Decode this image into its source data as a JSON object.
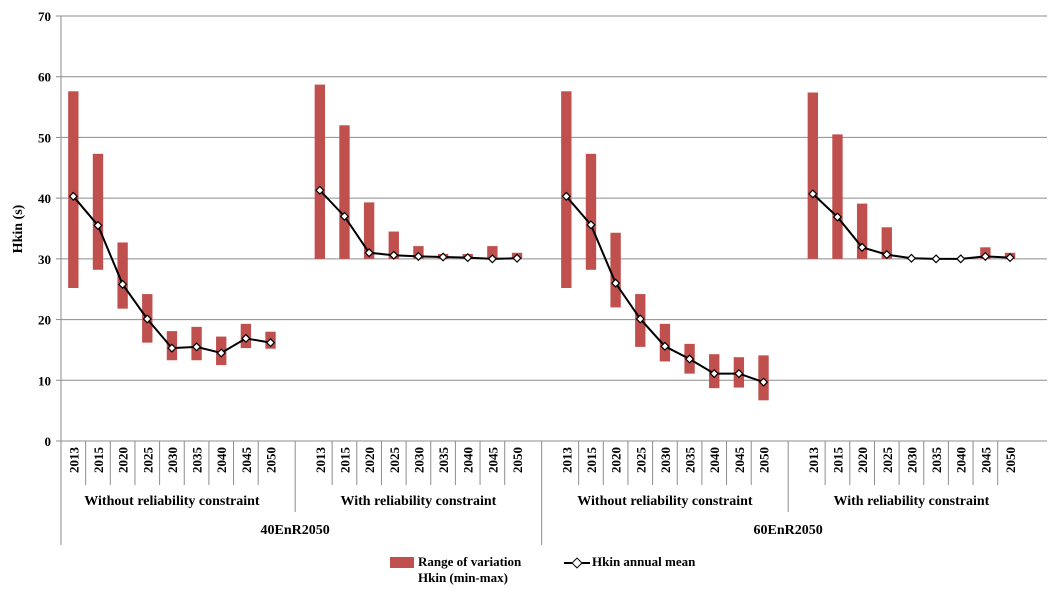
{
  "chart_data": {
    "type": "bar",
    "ylabel": "Hkin (s)",
    "ylim": [
      0,
      70
    ],
    "yticks": [
      0,
      10,
      20,
      30,
      40,
      50,
      60,
      70
    ],
    "grid": true,
    "legend_position": "bottom",
    "colors": {
      "range": "#c0504d",
      "mean": "#000000"
    },
    "series": [
      {
        "name": "Range of variation Hkin (min-max)",
        "kind": "floating-bar"
      },
      {
        "name": "Hkin annual mean",
        "kind": "line-diamond"
      }
    ],
    "scenarios": [
      {
        "label": "40EnR2050",
        "groups": [
          {
            "label": "Without reliability constraint",
            "categories": [
              "2013",
              "2015",
              "2020",
              "2025",
              "2030",
              "2035",
              "2040",
              "2045",
              "2050"
            ],
            "min": [
              25.2,
              28.2,
              21.8,
              16.2,
              13.3,
              13.3,
              12.5,
              15.3,
              15.2
            ],
            "max": [
              57.6,
              47.3,
              32.7,
              24.2,
              18.1,
              18.8,
              17.2,
              19.3,
              18.0
            ],
            "mean": [
              40.3,
              35.5,
              25.8,
              20.1,
              15.3,
              15.5,
              14.5,
              16.9,
              16.2
            ]
          },
          {
            "label": "With reliability constraint",
            "categories": [
              "2013",
              "2015",
              "2020",
              "2025",
              "2030",
              "2035",
              "2040",
              "2045",
              "2050"
            ],
            "min": [
              30.0,
              30.0,
              30.0,
              30.0,
              30.0,
              30.0,
              30.0,
              30.0,
              30.0
            ],
            "max": [
              58.7,
              52.0,
              39.3,
              34.5,
              32.1,
              30.8,
              30.8,
              32.1,
              31.0
            ],
            "mean": [
              41.3,
              37.0,
              31.0,
              30.6,
              30.4,
              30.3,
              30.2,
              30.0,
              30.1
            ]
          }
        ]
      },
      {
        "label": "60EnR2050",
        "groups": [
          {
            "label": "Without reliability constraint",
            "categories": [
              "2013",
              "2015",
              "2020",
              "2025",
              "2030",
              "2035",
              "2040",
              "2045",
              "2050"
            ],
            "min": [
              25.2,
              28.2,
              22.0,
              15.5,
              13.1,
              11.1,
              8.7,
              8.8,
              6.7
            ],
            "max": [
              57.6,
              47.3,
              34.3,
              24.2,
              19.3,
              16.0,
              14.3,
              13.8,
              14.1
            ],
            "mean": [
              40.3,
              35.6,
              26.0,
              20.1,
              15.6,
              13.5,
              11.1,
              11.1,
              9.7
            ]
          },
          {
            "label": "With reliability constraint",
            "categories": [
              "2013",
              "2015",
              "2020",
              "2025",
              "2030",
              "2035",
              "2040",
              "2045",
              "2050"
            ],
            "min": [
              30.0,
              30.0,
              30.0,
              30.0,
              30.0,
              30.0,
              30.0,
              30.0,
              30.0
            ],
            "max": [
              57.4,
              50.5,
              39.1,
              35.2,
              30.1,
              30.1,
              30.1,
              31.9,
              31.0
            ],
            "mean": [
              40.7,
              36.9,
              31.9,
              30.7,
              30.1,
              30.0,
              30.0,
              30.4,
              30.2
            ]
          }
        ]
      }
    ]
  },
  "legend": {
    "range_label_line1": "Range of variation",
    "range_label_line2": "Hkin (min-max)",
    "mean_label": "Hkin annual mean"
  }
}
